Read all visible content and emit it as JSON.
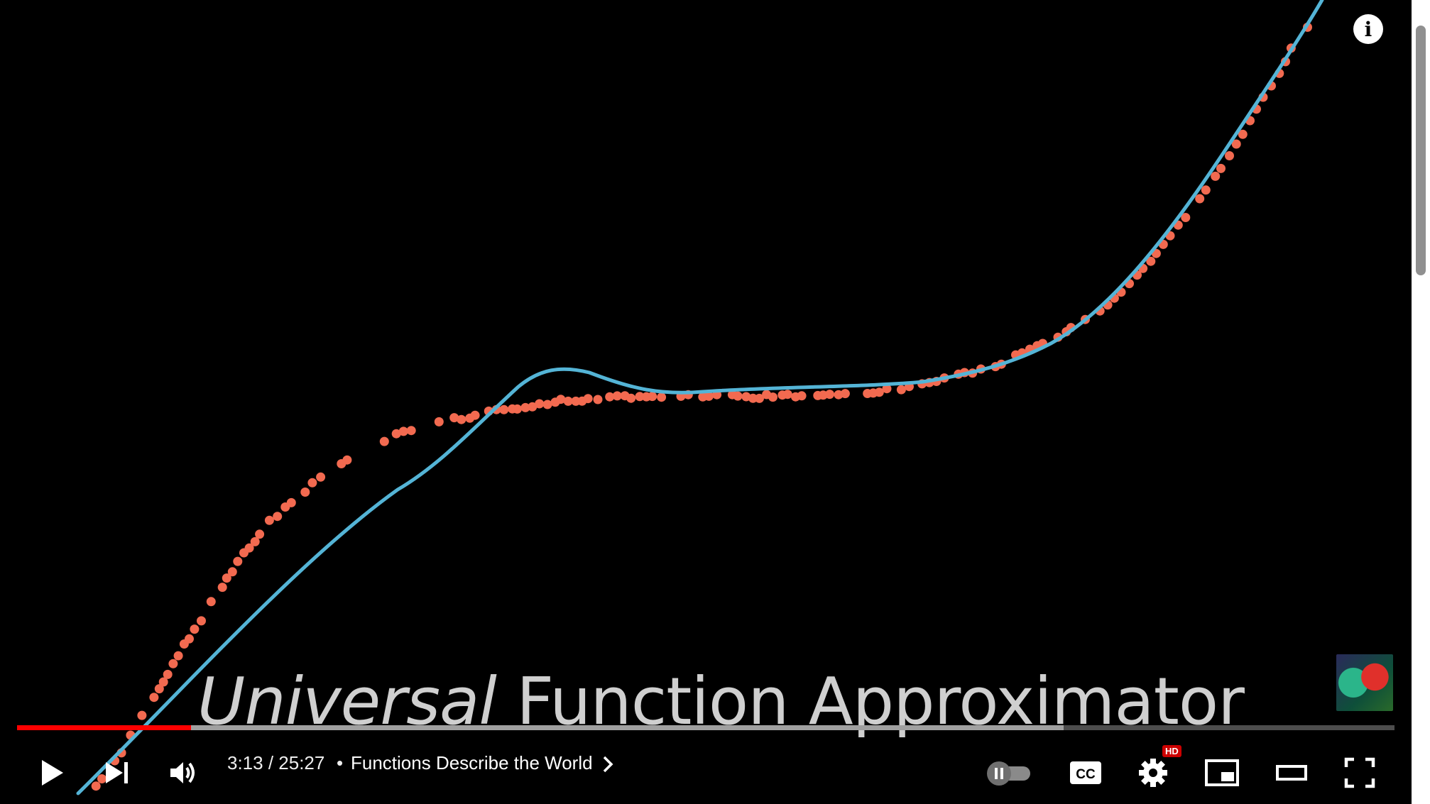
{
  "overlay": {
    "title_italic": "Universal",
    "title_rest": " Function Approximator"
  },
  "player": {
    "info_label": "i",
    "time_current": "3:13",
    "time_total": "25:27",
    "time_text": "3:13 / 25:27",
    "chapter_separator": "•",
    "chapter_title": "Functions Describe the World",
    "hd_label": "HD",
    "progress_fraction": 0.1264,
    "buffered_fraction": 0.76
  },
  "colors": {
    "points": "#f26a50",
    "curve": "#54b4d6",
    "progress": "#ff0000",
    "background": "#000000"
  },
  "icons": {
    "play": "play-icon",
    "next": "next-icon",
    "volume": "volume-icon",
    "autoplay": "autoplay-toggle-icon",
    "captions": "captions-icon",
    "settings": "gear-icon",
    "miniplayer": "miniplayer-icon",
    "theater": "theater-mode-icon",
    "fullscreen": "fullscreen-icon",
    "info": "info-icon",
    "chevron": "chevron-right-icon"
  }
}
